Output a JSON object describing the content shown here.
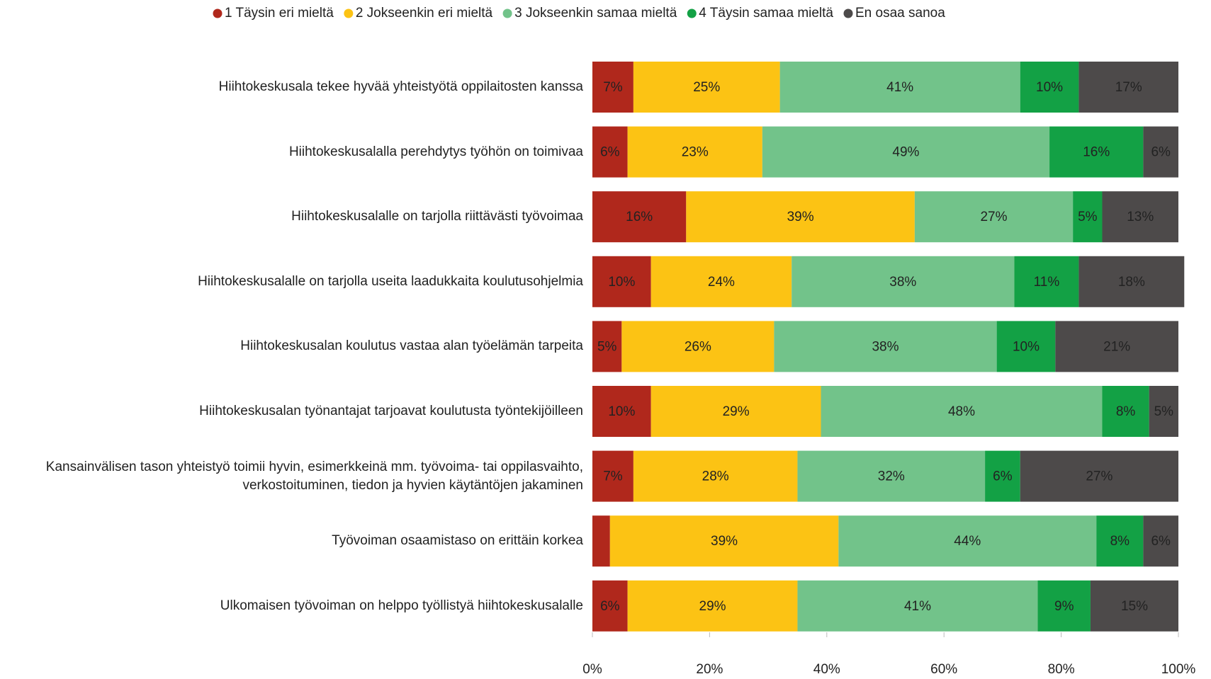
{
  "chart_data": {
    "type": "stacked-barh",
    "categories": [
      "Hiihtokeskusala tekee hyvää yhteistyötä oppilaitosten kanssa",
      "Hiihtokeskusalalla perehdytys työhön on toimivaa",
      "Hiihtokeskusalalle on tarjolla riittävästi työvoimaa",
      "Hiihtokeskusalalle on tarjolla useita laadukkaita koulutusohjelmia",
      "Hiihtokeskusalan koulutus vastaa alan työelämän tarpeita",
      "Hiihtokeskusalan työnantajat tarjoavat koulutusta työntekijöilleen",
      "Kansainvälisen tason yhteistyö toimii hyvin, esimerkkeinä mm. työvoima- tai oppilasvaihto, verkostoituminen, tiedon ja hyvien käytäntöjen jakaminen",
      "Työvoiman osaamistaso on erittäin korkea",
      "Ulkomaisen työvoiman on helppo työllistyä hiihtokeskusalalle"
    ],
    "series": [
      {
        "name": "1 Täysin eri mieltä",
        "color": "#b0281c",
        "values": [
          7,
          6,
          16,
          10,
          5,
          10,
          7,
          3,
          6
        ],
        "value_labels": [
          "7%",
          "6%",
          "16%",
          "10%",
          "5%",
          "10%",
          "7%",
          null,
          "6%"
        ]
      },
      {
        "name": "2 Jokseenkin eri mieltä",
        "color": "#fcc314",
        "values": [
          25,
          23,
          39,
          24,
          26,
          29,
          28,
          39,
          29
        ],
        "value_labels": [
          "25%",
          "23%",
          "39%",
          "24%",
          "26%",
          "29%",
          "28%",
          "39%",
          "29%"
        ]
      },
      {
        "name": "3 Jokseenkin samaa mieltä",
        "color": "#72c38a",
        "values": [
          41,
          49,
          27,
          38,
          38,
          48,
          32,
          44,
          41
        ],
        "value_labels": [
          "41%",
          "49%",
          "27%",
          "38%",
          "38%",
          "48%",
          "32%",
          "44%",
          "41%"
        ]
      },
      {
        "name": "4 Täysin samaa mieltä",
        "color": "#13a145",
        "values": [
          10,
          16,
          5,
          11,
          10,
          8,
          6,
          8,
          9
        ],
        "value_labels": [
          "10%",
          "16%",
          "5%",
          "11%",
          "10%",
          "8%",
          "6%",
          "8%",
          "9%"
        ]
      },
      {
        "name": "En osaa sanoa",
        "color": "#4d4a4a",
        "values": [
          17,
          6,
          13,
          18,
          21,
          5,
          27,
          6,
          15
        ],
        "value_labels": [
          "17%",
          "6%",
          "13%",
          "18%",
          "21%",
          "5%",
          "27%",
          "6%",
          "15%"
        ]
      }
    ],
    "xlim": [
      0,
      100
    ],
    "xticks": [
      {
        "value": 0,
        "label": "0%"
      },
      {
        "value": 20,
        "label": "20%"
      },
      {
        "value": 40,
        "label": "40%"
      },
      {
        "value": 60,
        "label": "60%"
      },
      {
        "value": 80,
        "label": "80%"
      },
      {
        "value": 100,
        "label": "100%"
      }
    ],
    "legend": "top"
  }
}
